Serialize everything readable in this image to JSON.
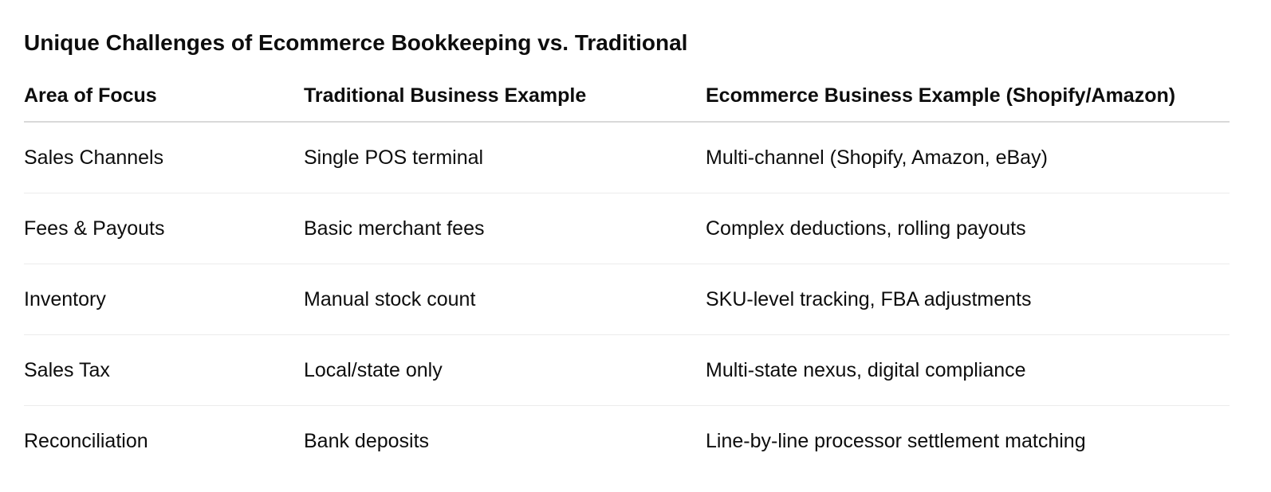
{
  "title": "Unique Challenges of Ecommerce Bookkeeping vs. Traditional",
  "headers": [
    "Area of Focus",
    "Traditional Business Example",
    "Ecommerce Business Example (Shopify/Amazon)"
  ],
  "rows": [
    [
      "Sales Channels",
      "Single POS terminal",
      "Multi-channel (Shopify, Amazon, eBay)"
    ],
    [
      "Fees & Payouts",
      "Basic merchant fees",
      "Complex deductions, rolling payouts"
    ],
    [
      "Inventory",
      "Manual stock count",
      "SKU-level tracking, FBA adjustments"
    ],
    [
      "Sales Tax",
      "Local/state only",
      "Multi-state nexus, digital compliance"
    ],
    [
      "Reconciliation",
      "Bank deposits",
      "Line-by-line processor settlement matching"
    ]
  ]
}
